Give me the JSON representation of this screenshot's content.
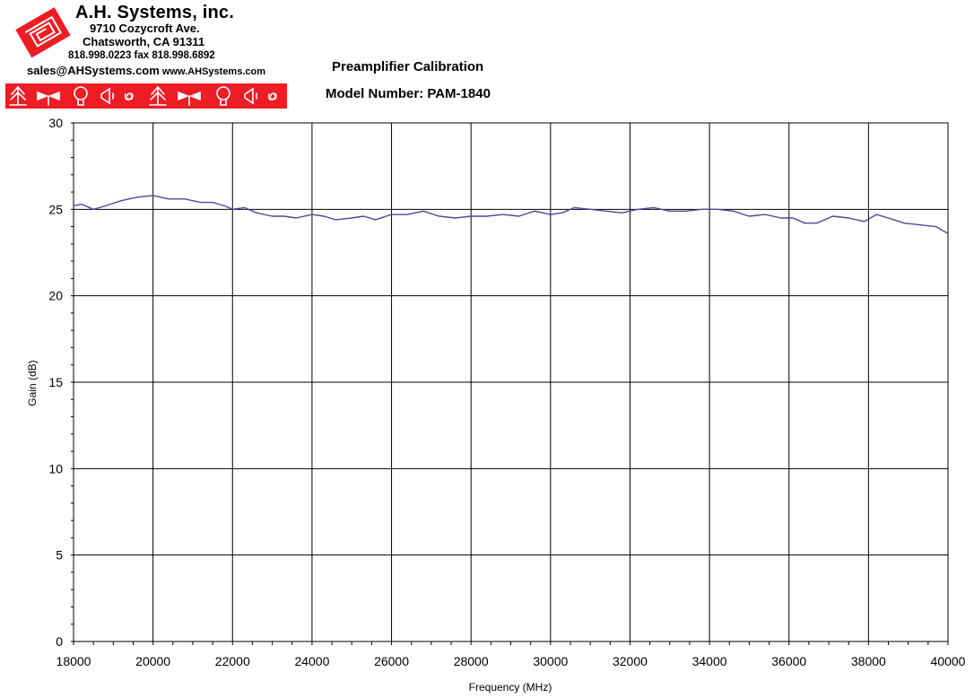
{
  "header": {
    "company": "A.H. Systems, inc.",
    "address": "9710 Cozycroft Ave.",
    "city": "Chatsworth, CA 91311",
    "phone": "818.998.0223 fax 818.998.6892",
    "email": "sales@AHSystems.com",
    "website": "www.AHSystems.com",
    "icons": [
      "biconical-icon",
      "dipole-icon",
      "loop-icon",
      "horn-icon",
      "spiral-icon",
      "biconical-icon",
      "dipole-icon",
      "loop-icon",
      "horn-icon",
      "spiral-icon"
    ],
    "strip_color": "#ee1c24"
  },
  "chart_data": {
    "type": "line",
    "title": "Preamplifier Calibration",
    "subtitle": "Model Number: PAM-1840",
    "xlabel": "Frequency (MHz)",
    "ylabel": "Gain (dB)",
    "xlim": [
      18000,
      40000
    ],
    "ylim": [
      0,
      30
    ],
    "xticks": [
      18000,
      20000,
      22000,
      24000,
      26000,
      28000,
      30000,
      32000,
      34000,
      36000,
      38000,
      40000
    ],
    "yticks": [
      0,
      5,
      10,
      15,
      20,
      25,
      30
    ],
    "grid": true,
    "line_color": "#4a4a9c",
    "series": [
      {
        "x": [
          18000,
          18200,
          18500,
          18800,
          19200,
          19600,
          20000,
          20400,
          20800,
          21200,
          21500,
          21800,
          22000,
          22300,
          22600,
          23000,
          23300,
          23600,
          24000,
          24300,
          24600,
          25000,
          25300,
          25600,
          26000,
          26400,
          26800,
          27200,
          27600,
          28000,
          28400,
          28800,
          29200,
          29600,
          30000,
          30300,
          30600,
          31000,
          31400,
          31800,
          32200,
          32600,
          33000,
          33400,
          33800,
          34200,
          34600,
          35000,
          35400,
          35800,
          36100,
          36400,
          36700,
          37100,
          37500,
          37900,
          38200,
          38500,
          38900,
          39300,
          39700,
          40000
        ],
        "y": [
          25.2,
          25.3,
          25.0,
          25.2,
          25.5,
          25.7,
          25.8,
          25.6,
          25.6,
          25.4,
          25.4,
          25.2,
          25.0,
          25.1,
          24.8,
          24.6,
          24.6,
          24.5,
          24.7,
          24.6,
          24.4,
          24.5,
          24.6,
          24.4,
          24.7,
          24.7,
          24.9,
          24.6,
          24.5,
          24.6,
          24.6,
          24.7,
          24.6,
          24.9,
          24.7,
          24.8,
          25.1,
          25.0,
          24.9,
          24.8,
          25.0,
          25.1,
          24.9,
          24.9,
          25.0,
          25.0,
          24.9,
          24.6,
          24.7,
          24.5,
          24.5,
          24.2,
          24.2,
          24.6,
          24.5,
          24.3,
          24.7,
          24.5,
          24.2,
          24.1,
          24.0,
          23.6
        ]
      }
    ]
  }
}
